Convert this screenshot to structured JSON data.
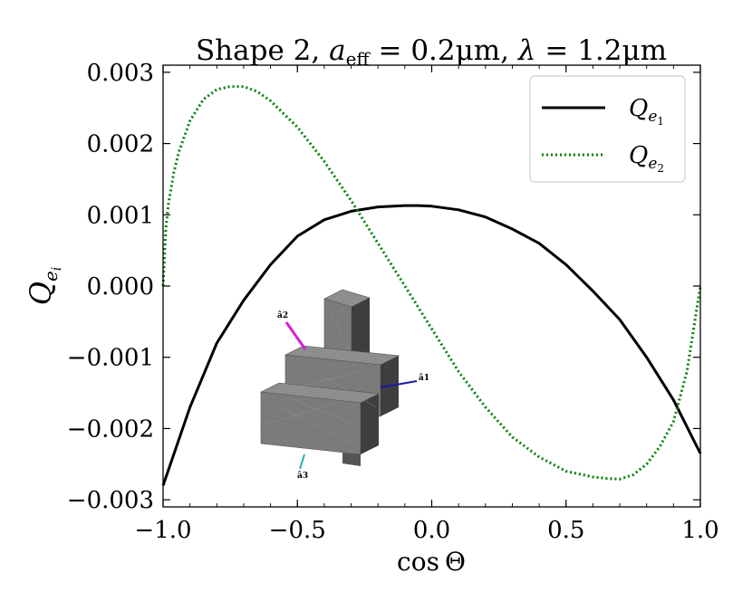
{
  "chart_data": {
    "type": "line",
    "title": "Shape 2, a_eff = 0.2μm, λ = 1.2μm",
    "title_parts": {
      "prefix": "Shape 2, ",
      "a_symbol": "a",
      "a_subscript": "eff",
      "a_value": " = 0.2μm, ",
      "lambda_symbol": "λ",
      "lambda_value": " = 1.2μm"
    },
    "xlabel": "cos Θ",
    "xlabel_parts": {
      "func": "cos",
      "symbol": "Θ"
    },
    "ylabel": "Q_{e_i}",
    "ylabel_parts": {
      "base": "Q",
      "sub": "e",
      "subsub": "i"
    },
    "xlim": [
      -1.0,
      1.0
    ],
    "ylim": [
      -0.0031,
      0.0031
    ],
    "x_ticks": [
      -1.0,
      -0.5,
      0.0,
      0.5,
      1.0
    ],
    "x_tick_labels": [
      "−1.0",
      "−0.5",
      "0.0",
      "0.5",
      "1.0"
    ],
    "y_ticks": [
      0.003,
      0.002,
      0.001,
      0.0,
      -0.001,
      -0.002,
      -0.003
    ],
    "y_tick_labels": [
      "0.003",
      "0.002",
      "0.001",
      "0.000",
      "−0.001",
      "−0.002",
      "−0.003"
    ],
    "grid": false,
    "legend_position": "top-right",
    "series": [
      {
        "name": "Q_e1",
        "legend_base": "Q",
        "legend_sub": "e",
        "legend_subsub": "1",
        "color": "#000000",
        "style": "solid",
        "x": [
          -1.0,
          -0.9,
          -0.8,
          -0.7,
          -0.6,
          -0.5,
          -0.4,
          -0.3,
          -0.2,
          -0.1,
          -0.05,
          0.0,
          0.1,
          0.2,
          0.3,
          0.4,
          0.5,
          0.6,
          0.7,
          0.8,
          0.9,
          1.0
        ],
        "y": [
          -0.0028,
          -0.0017,
          -0.0008,
          -0.0002,
          0.0003,
          0.0007,
          0.00093,
          0.00105,
          0.00111,
          0.00113,
          0.00113,
          0.00112,
          0.00107,
          0.00097,
          0.0008,
          0.0006,
          0.0003,
          -7e-05,
          -0.00047,
          -0.001,
          -0.0016,
          -0.00235
        ]
      },
      {
        "name": "Q_e2",
        "legend_base": "Q",
        "legend_sub": "e",
        "legend_subsub": "2",
        "color": "#008000",
        "style": "dotted",
        "x": [
          -1.0,
          -0.99,
          -0.98,
          -0.96,
          -0.94,
          -0.9,
          -0.85,
          -0.8,
          -0.75,
          -0.7,
          -0.65,
          -0.6,
          -0.5,
          -0.4,
          -0.3,
          -0.2,
          -0.1,
          0.0,
          0.1,
          0.2,
          0.3,
          0.4,
          0.5,
          0.6,
          0.65,
          0.7,
          0.75,
          0.8,
          0.85,
          0.9,
          0.95,
          1.0
        ],
        "y": [
          0.0,
          0.0008,
          0.00115,
          0.0016,
          0.0019,
          0.00232,
          0.00262,
          0.00276,
          0.0028,
          0.0028,
          0.00273,
          0.0026,
          0.00223,
          0.00175,
          0.0012,
          0.0006,
          0.0,
          -0.0006,
          -0.0012,
          -0.0017,
          -0.00212,
          -0.0024,
          -0.0026,
          -0.00268,
          -0.0027,
          -0.00271,
          -0.00265,
          -0.0025,
          -0.00225,
          -0.0019,
          -0.0012,
          0.0
        ]
      }
    ]
  },
  "inset": {
    "axis_labels": [
      "â2",
      "â1",
      "â3"
    ],
    "colors": {
      "a1": "#1a1aa8",
      "a2": "#d21fd6",
      "a3": "#1fb3b3",
      "block_face": "#7b7b7b",
      "block_top": "#8e8e8e",
      "block_side": "#3e3e3e"
    }
  }
}
